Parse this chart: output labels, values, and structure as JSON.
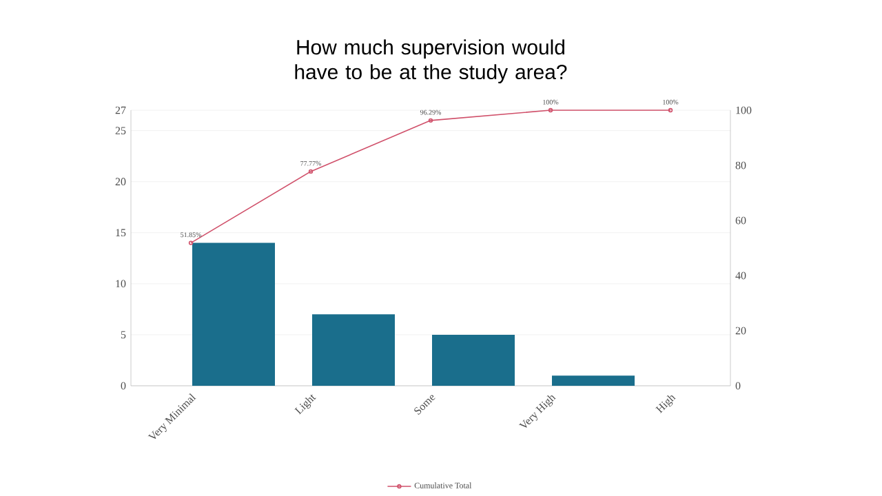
{
  "chart_data": {
    "type": "bar",
    "title": "How much supervision would have to be at the study area?",
    "categories": [
      "Very Minimal",
      "Light",
      "Some",
      "Very High",
      "High"
    ],
    "series": [
      {
        "color": "#1a6e8c",
        "values": [
          14,
          7,
          5,
          1,
          0
        ]
      },
      {
        "type": "line",
        "name": "Cumulative Total",
        "color": "#d0506a",
        "axis": "y2",
        "marker": "circle",
        "values": [
          51.85,
          77.77,
          96.29,
          100,
          100
        ],
        "value_labels": [
          "51.85%",
          "77.77%",
          "96.29%",
          "100%",
          "100%"
        ]
      }
    ],
    "ylim": [
      0,
      27
    ],
    "yticks": [
      0,
      5,
      10,
      15,
      20,
      25,
      27
    ],
    "y2lim": [
      0,
      100
    ],
    "y2ticks": [
      0,
      20,
      40,
      60,
      80,
      100
    ],
    "grid": "y",
    "legend": "bottom"
  }
}
